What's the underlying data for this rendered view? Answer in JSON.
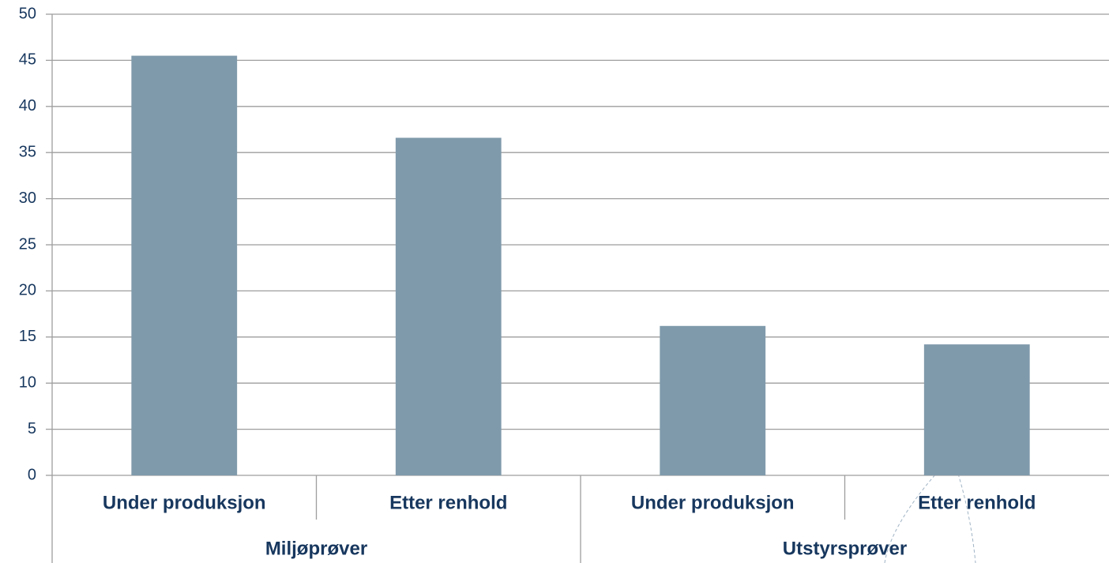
{
  "chart_data": {
    "type": "bar",
    "categories": [
      "Under produksjon",
      "Etter renhold",
      "Under produksjon",
      "Etter renhold"
    ],
    "groups": [
      "Miljøprøver",
      "Utstyrsprøver"
    ],
    "values": [
      45.5,
      36.6,
      16.2,
      14.2
    ],
    "color": "#7f9aab",
    "ylim": [
      0,
      50
    ],
    "yticks": [
      0,
      5,
      10,
      15,
      20,
      25,
      30,
      35,
      40,
      45,
      50
    ],
    "grid": true
  }
}
